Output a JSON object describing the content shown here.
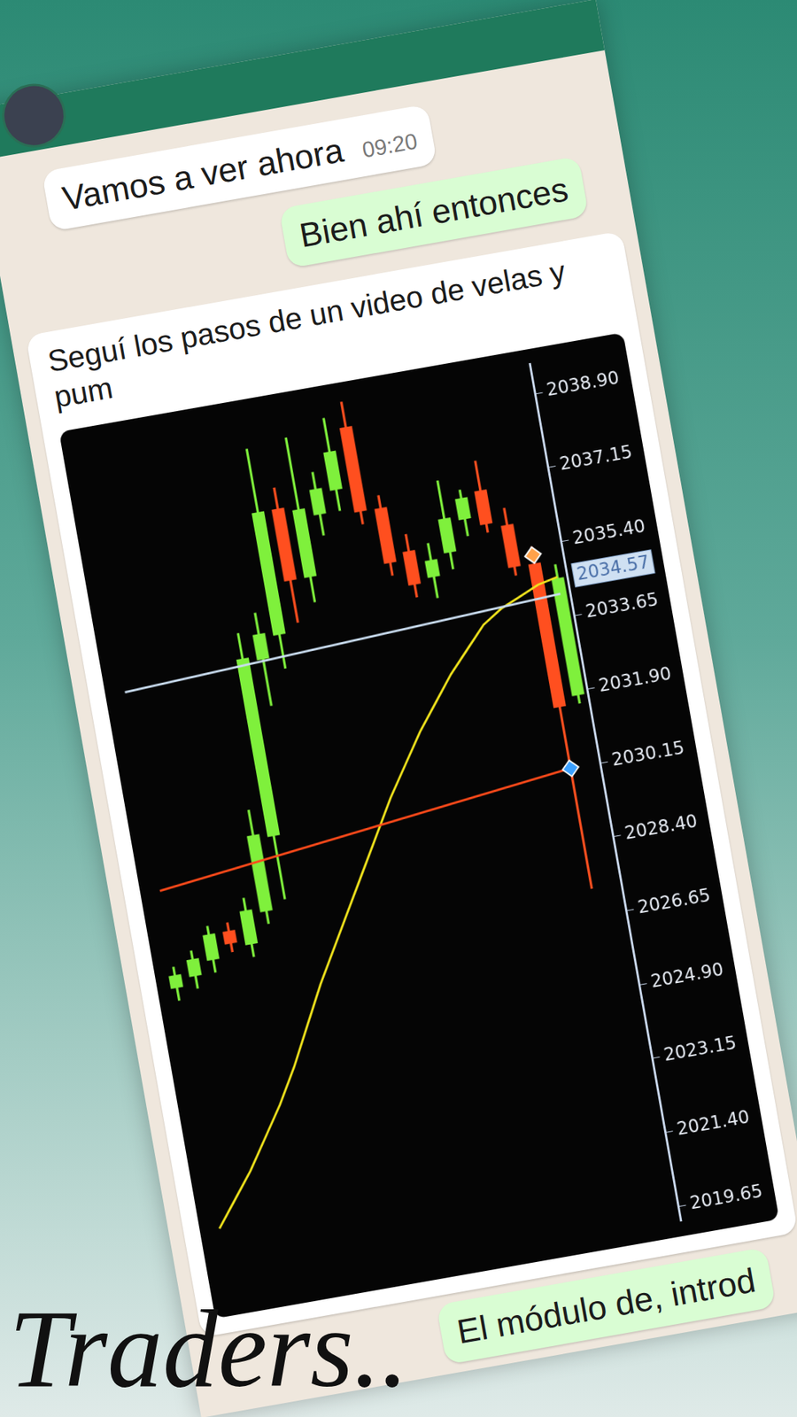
{
  "chat": {
    "messages": [
      {
        "side": "in",
        "text": "Vamos a ver ahora",
        "time": "09:20"
      },
      {
        "side": "out",
        "text": "Bien ahí entonces"
      },
      {
        "side": "in",
        "text": "Seguí los pasos de un video de velas y pum"
      },
      {
        "side": "out",
        "text": "El módulo de, introd"
      }
    ]
  },
  "overlay_title": "Traders..",
  "chart_data": {
    "type": "candlestick",
    "categories": [
      null,
      null,
      null,
      null,
      null,
      null,
      null,
      null,
      null,
      null,
      null,
      null,
      null,
      null,
      null,
      null,
      null,
      null,
      null,
      null,
      null,
      null,
      null
    ],
    "open": [
      2026.7,
      2026.9,
      2027.2,
      2027.8,
      2027.4,
      2028.1,
      2029.8,
      2033.9,
      2034.4,
      2037.3,
      2035.6,
      2037.0,
      2037.5,
      2038.9,
      2036.9,
      2035.8,
      2035.1,
      2035.6,
      2036.3,
      2036.9,
      2036.0,
      2035.0,
      2031.8
    ],
    "high": [
      2027.2,
      2027.5,
      2028.0,
      2028.0,
      2028.5,
      2030.5,
      2034.6,
      2035.0,
      2038.8,
      2037.8,
      2038.9,
      2038.0,
      2039.2,
      2039.5,
      2037.2,
      2036.2,
      2035.9,
      2037.3,
      2037.0,
      2037.6,
      2036.4,
      2035.4,
      2034.9
    ],
    "low": [
      2026.4,
      2026.6,
      2026.9,
      2027.3,
      2027.1,
      2027.8,
      2028.3,
      2032.8,
      2033.6,
      2034.6,
      2035.0,
      2036.5,
      2037.0,
      2036.6,
      2035.3,
      2034.7,
      2034.6,
      2035.2,
      2035.9,
      2035.9,
      2034.8,
      2027.3,
      2031.6
    ],
    "close": [
      2027.0,
      2027.3,
      2027.8,
      2027.5,
      2028.2,
      2029.9,
      2034.0,
      2034.5,
      2037.3,
      2035.6,
      2037.2,
      2037.6,
      2038.4,
      2036.9,
      2035.6,
      2035.0,
      2035.5,
      2036.4,
      2036.8,
      2036.1,
      2035.0,
      2031.6,
      2034.57
    ],
    "colors": [
      "#7ff03c",
      "#7ff03c",
      "#7ff03c",
      "#ff4f1f",
      "#7ff03c",
      "#7ff03c",
      "#7ff03c",
      "#7ff03c",
      "#7ff03c",
      "#ff4f1f",
      "#7ff03c",
      "#7ff03c",
      "#7ff03c",
      "#ff4f1f",
      "#ff4f1f",
      "#ff4f1f",
      "#7ff03c",
      "#7ff03c",
      "#7ff03c",
      "#ff4f1f",
      "#ff4f1f",
      "#ff4f1f",
      "#7ff03c"
    ],
    "series": [
      {
        "type": "line",
        "color": "#f2e51c",
        "values": [
          2021.0,
          2021.6,
          2022.2,
          2022.9,
          2023.6,
          2024.4,
          2025.3,
          2026.2,
          2027.0,
          2027.8,
          2028.6,
          2029.4,
          2030.2,
          2030.9,
          2031.6,
          2032.2,
          2032.8,
          2033.3,
          2033.8,
          2034.1,
          2034.3,
          2034.5,
          2034.6
        ]
      },
      {
        "type": "line",
        "color": "#ff4a1a",
        "values": [
          2029.0,
          null,
          null,
          null,
          null,
          null,
          null,
          null,
          null,
          null,
          null,
          null,
          null,
          null,
          null,
          null,
          null,
          null,
          null,
          null,
          null,
          2030.15,
          null
        ]
      },
      {
        "type": "line",
        "color": "#c9dcef",
        "values": [
          2033.7,
          null,
          null,
          null,
          null,
          null,
          null,
          null,
          null,
          null,
          null,
          null,
          null,
          null,
          null,
          null,
          null,
          null,
          null,
          null,
          null,
          null,
          2034.2
        ]
      },
      {
        "type": "scatter",
        "marker": "diamond",
        "color": "#ffa24a",
        "values": [
          null,
          null,
          null,
          null,
          null,
          null,
          null,
          null,
          null,
          null,
          null,
          null,
          null,
          null,
          null,
          null,
          null,
          null,
          null,
          null,
          null,
          2035.2,
          null
        ]
      },
      {
        "type": "scatter",
        "marker": "diamond",
        "color": "#3aa0ff",
        "values": [
          null,
          null,
          null,
          null,
          null,
          null,
          null,
          null,
          null,
          null,
          null,
          null,
          null,
          null,
          null,
          null,
          null,
          null,
          null,
          null,
          null,
          2030.15,
          null
        ]
      }
    ],
    "price_label": 2034.57,
    "ylim": [
      2019.3,
      2039.6
    ],
    "yticks": [
      {
        "value": 2038.9,
        "label": "2038.90"
      },
      {
        "value": 2037.15,
        "label": "2037.15"
      },
      {
        "value": 2035.4,
        "label": "2035.40"
      },
      {
        "value": 2033.65,
        "label": "2033.65"
      },
      {
        "value": 2031.9,
        "label": "2031.90"
      },
      {
        "value": 2030.15,
        "label": "2030.15"
      },
      {
        "value": 2028.4,
        "label": "2028.40"
      },
      {
        "value": 2026.65,
        "label": "2026.65"
      },
      {
        "value": 2024.9,
        "label": "2024.90"
      },
      {
        "value": 2023.15,
        "label": "2023.15"
      },
      {
        "value": 2021.4,
        "label": "2021.40"
      },
      {
        "value": 2019.65,
        "label": "2019.65"
      }
    ],
    "grid": false,
    "tick_labels": "y"
  }
}
